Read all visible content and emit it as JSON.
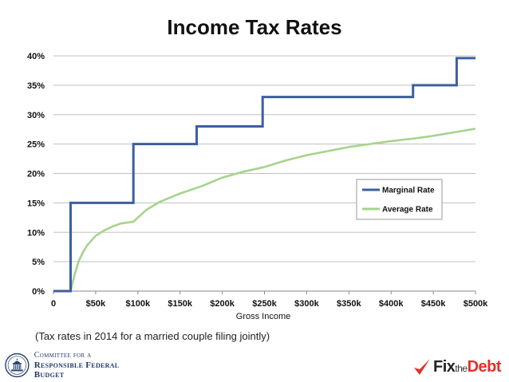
{
  "chart_data": {
    "type": "line",
    "title": "Income Tax Rates",
    "xlabel": "Gross Income",
    "ylabel": "",
    "xlim": [
      0,
      500000
    ],
    "ylim": [
      0,
      40
    ],
    "x_ticks": [
      0,
      50000,
      100000,
      150000,
      200000,
      250000,
      300000,
      350000,
      400000,
      450000,
      500000
    ],
    "x_tick_labels": [
      "0",
      "$50k",
      "$100k",
      "$150k",
      "$200k",
      "$250k",
      "$300k",
      "$350k",
      "$400k",
      "$450k",
      "$500k"
    ],
    "y_ticks": [
      0,
      5,
      10,
      15,
      20,
      25,
      30,
      35,
      40
    ],
    "y_tick_labels": [
      "0%",
      "5%",
      "10%",
      "15%",
      "20%",
      "25%",
      "30%",
      "35%",
      "40%"
    ],
    "grid": "horizontal",
    "legend_position": "right",
    "series": [
      {
        "name": "Marginal Rate",
        "color": "#3d5f9e",
        "x": [
          0,
          20300,
          20300,
          94700,
          94700,
          169650,
          169650,
          247800,
          247800,
          425950,
          425950,
          477700,
          477700,
          500000
        ],
        "y": [
          0,
          0,
          15,
          15,
          25,
          25,
          28,
          28,
          33,
          33,
          35,
          35,
          39.6,
          39.6
        ]
      },
      {
        "name": "Average Rate",
        "color": "#a6d48b",
        "x": [
          0,
          20300,
          25000,
          30000,
          35000,
          40000,
          50000,
          60000,
          70000,
          80000,
          94700,
          110000,
          125000,
          150000,
          175000,
          200000,
          225000,
          250000,
          275000,
          300000,
          325000,
          350000,
          375000,
          400000,
          425000,
          450000,
          475000,
          500000
        ],
        "y": [
          0,
          0,
          2.8,
          5.1,
          6.6,
          7.8,
          9.4,
          10.3,
          11,
          11.5,
          11.8,
          13.8,
          15.1,
          16.6,
          17.8,
          19.3,
          20.3,
          21.1,
          22.2,
          23.1,
          23.8,
          24.5,
          25,
          25.5,
          25.9,
          26.4,
          27,
          27.6
        ]
      }
    ],
    "footnote": "(Tax rates in 2014 for a married couple filing jointly)"
  },
  "branding": {
    "left_line1": "Committee for a",
    "left_line2": "Responsible Federal Budget",
    "left_icon": "capitol-seal-icon",
    "right_fix": "Fix",
    "right_the": "the",
    "right_debt": "Debt",
    "right_icon": "checkmark-icon",
    "accent_color": "#e2312a",
    "navy_color": "#1f3a6b"
  }
}
